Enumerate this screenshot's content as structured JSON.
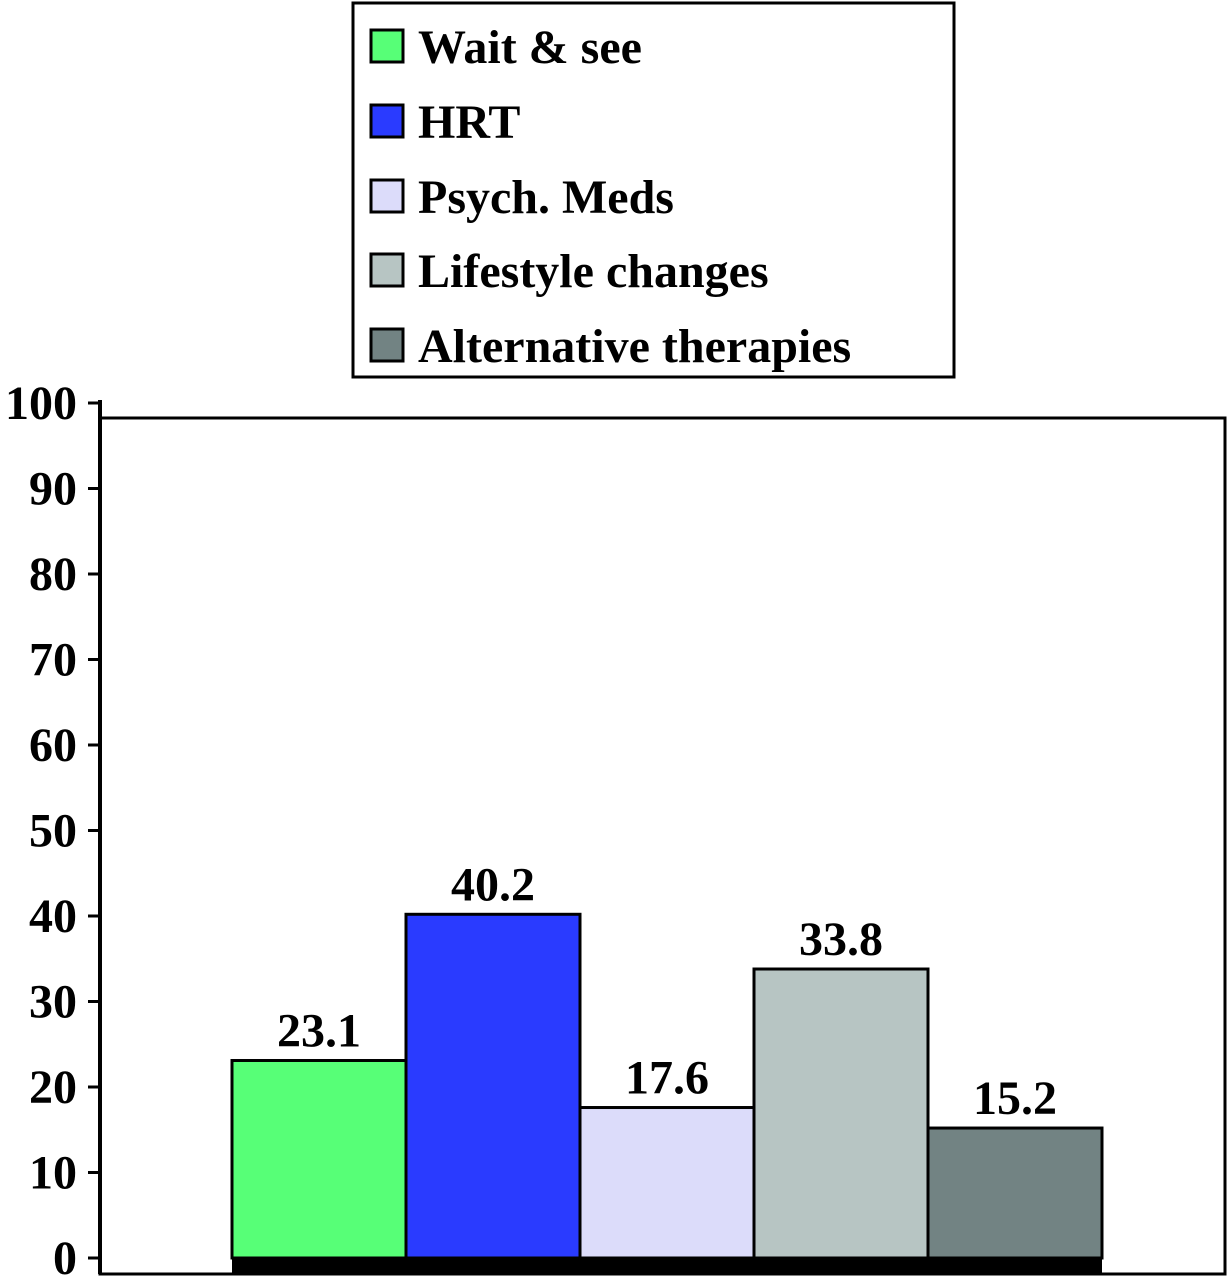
{
  "chart_data": {
    "type": "bar",
    "categories": [
      "Wait & see",
      "HRT",
      "Psych. Meds",
      "Lifestyle changes",
      "Alternative therapies"
    ],
    "values": [
      23.1,
      40.2,
      17.6,
      33.8,
      15.2
    ],
    "data_labels": [
      "23.1",
      "40.2",
      "17.6",
      "33.8",
      "15.2"
    ],
    "colors": [
      "#57ff77",
      "#2a3bff",
      "#dcdcfa",
      "#b7c5c3",
      "#728383"
    ],
    "title": "",
    "xlabel": "",
    "ylabel": "",
    "ylim": [
      0,
      100
    ],
    "yticks": [
      0,
      10,
      20,
      30,
      40,
      50,
      60,
      70,
      80,
      90,
      100
    ],
    "grid": false,
    "legend": {
      "position": "top-center",
      "entries": [
        "Wait & see",
        "HRT",
        "Psych. Meds",
        "Lifestyle changes",
        "Alternative therapies"
      ]
    }
  }
}
